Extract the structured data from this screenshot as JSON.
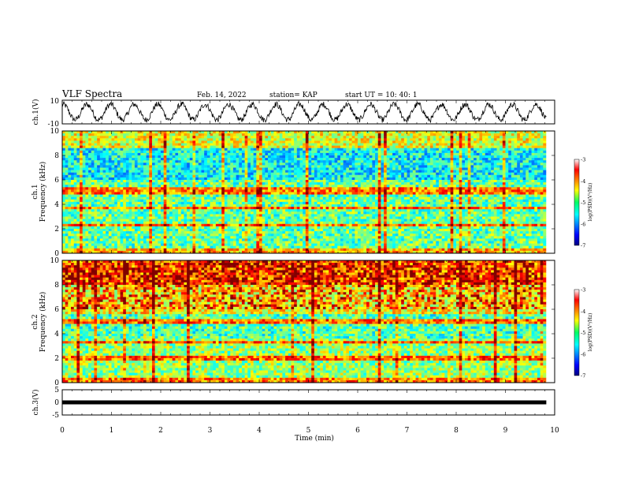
{
  "header": {
    "title": "VLF Spectra",
    "date": "Feb. 14, 2022",
    "station": "station= KAP",
    "start_ut": "start UT =  10: 40: 1"
  },
  "chart_data": [
    {
      "type": "line",
      "name": "ch1-waveform",
      "ylabel": "ch.1(V)",
      "ylim": [
        -10,
        10
      ],
      "y_ticks": [
        "10",
        "-10"
      ],
      "xlim": [
        0,
        10
      ],
      "data_end_min": 9.83,
      "approx_period_min": 0.48
    },
    {
      "type": "heatmap",
      "name": "ch1-spectrogram",
      "ylabel": "ch.1",
      "ylabel2": "Frequency (kHz)",
      "ylim": [
        0,
        10
      ],
      "y_ticks": [
        "0",
        "2",
        "4",
        "6",
        "8",
        "10"
      ],
      "xlim": [
        0,
        10
      ],
      "colorbar": {
        "ticks": [
          "-3",
          "-4",
          "-5",
          "-6",
          "-7"
        ],
        "label": "log(PSD)(V²/Hz)",
        "range": [
          -7,
          -3
        ]
      }
    },
    {
      "type": "heatmap",
      "name": "ch2-spectrogram",
      "ylabel": "ch.2",
      "ylabel2": "Frequency (kHz)",
      "ylim": [
        0,
        10
      ],
      "y_ticks": [
        "0",
        "2",
        "4",
        "6",
        "8",
        "10"
      ],
      "xlim": [
        0,
        10
      ],
      "colorbar": {
        "ticks": [
          "-3",
          "-4",
          "-5",
          "-6",
          "-7"
        ],
        "label": "log(PSD)(V²/Hz)",
        "range": [
          -7,
          -3
        ]
      }
    },
    {
      "type": "line",
      "name": "ch3-waveform",
      "ylabel": "ch.3(V)",
      "ylim": [
        -5,
        5
      ],
      "y_ticks": [
        "5",
        "0",
        "-5"
      ],
      "xlim": [
        0,
        10
      ],
      "data_end_min": 9.83,
      "approx_value": 0
    }
  ],
  "xaxis": {
    "label": "Time (min)",
    "ticks": [
      "0",
      "1",
      "2",
      "3",
      "4",
      "5",
      "6",
      "7",
      "8",
      "9",
      "10"
    ]
  },
  "colors": {
    "jet_low": "#00007f",
    "jet_mid": "#00ff66",
    "jet_high": "#ff0000",
    "trace": "#000000"
  }
}
